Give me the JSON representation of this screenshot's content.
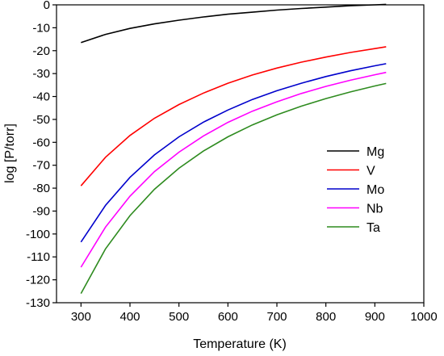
{
  "chart_data": {
    "type": "line",
    "title": "",
    "xlabel": "Temperature (K)",
    "ylabel": "log [P/torr]",
    "xlim": [
      250,
      1000
    ],
    "ylim": [
      -130,
      0
    ],
    "xticks": [
      300,
      400,
      500,
      600,
      700,
      800,
      900,
      1000
    ],
    "yticks": [
      0,
      -10,
      -20,
      -30,
      -40,
      -50,
      -60,
      -70,
      -80,
      -90,
      -100,
      -110,
      -120,
      -130
    ],
    "x": [
      300,
      350,
      400,
      450,
      500,
      550,
      600,
      650,
      700,
      750,
      800,
      850,
      900,
      923
    ],
    "grid": false,
    "legend_position": "center-right",
    "series": [
      {
        "name": "Mg",
        "color": "#000000",
        "values": [
          -16.5,
          -12.9,
          -10.3,
          -8.3,
          -6.7,
          -5.3,
          -4.1,
          -3.2,
          -2.3,
          -1.6,
          -1.0,
          -0.4,
          0.0,
          0.2
        ]
      },
      {
        "name": "V",
        "color": "#ff0000",
        "values": [
          -79,
          -66.5,
          -57,
          -49.5,
          -43.5,
          -38.5,
          -34.2,
          -30.6,
          -27.6,
          -25.0,
          -22.8,
          -20.8,
          -19.1,
          -18.3
        ]
      },
      {
        "name": "Mo",
        "color": "#0000cc",
        "values": [
          -103.5,
          -87.5,
          -75.3,
          -65.5,
          -57.6,
          -51.2,
          -45.9,
          -41.3,
          -37.5,
          -34.2,
          -31.3,
          -28.8,
          -26.6,
          -25.7
        ]
      },
      {
        "name": "Nb",
        "color": "#ff00ff",
        "values": [
          -114.5,
          -97,
          -83.5,
          -72.8,
          -64.3,
          -57.2,
          -51.3,
          -46.4,
          -42.3,
          -38.7,
          -35.6,
          -32.9,
          -30.5,
          -29.5
        ]
      },
      {
        "name": "Ta",
        "color": "#2e8b1f",
        "values": [
          -126,
          -106.5,
          -92,
          -80.5,
          -71.3,
          -63.8,
          -57.6,
          -52.4,
          -48.0,
          -44.2,
          -40.9,
          -38.0,
          -35.4,
          -34.3
        ]
      }
    ]
  }
}
